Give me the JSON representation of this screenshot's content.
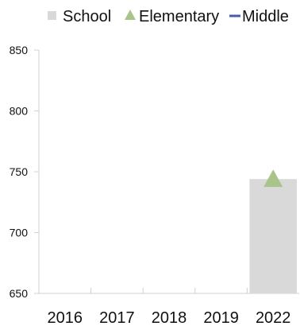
{
  "chart_data": {
    "type": "bar",
    "title": "",
    "xlabel": "",
    "ylabel": "",
    "categories": [
      "2016",
      "2017",
      "2018",
      "2019",
      "2022"
    ],
    "ylim": [
      650,
      850
    ],
    "yticks": [
      650,
      700,
      750,
      800,
      850
    ],
    "grid": false,
    "legend_position": "top",
    "series": [
      {
        "name": "School",
        "type": "bar",
        "color": "#d9d9d9",
        "values": [
          null,
          null,
          null,
          null,
          744
        ]
      },
      {
        "name": "Elementary",
        "type": "marker",
        "marker": "triangle",
        "color": "#a9c48b",
        "values": [
          null,
          null,
          null,
          null,
          744
        ]
      },
      {
        "name": "Middle",
        "type": "line",
        "color": "#4a5ea8",
        "values": [
          null,
          null,
          null,
          null,
          null
        ]
      }
    ]
  }
}
